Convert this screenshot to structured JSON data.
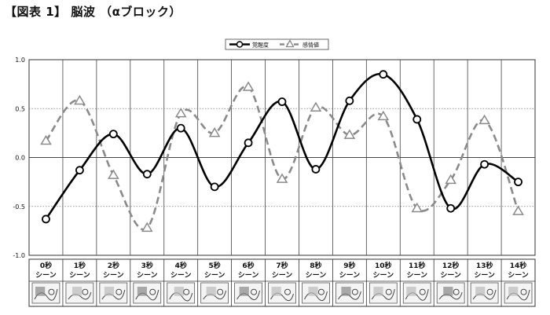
{
  "figure_title": "【図表 1】 脳波 （αブロック）",
  "chart_data": {
    "type": "line",
    "title": "",
    "xlabel": "",
    "ylabel": "",
    "ylim": [
      -1.0,
      1.0
    ],
    "yticks": [
      "1.0",
      "0.5",
      "0.0",
      "-0.5",
      "-1.0"
    ],
    "ytick_values": [
      1.0,
      0.5,
      0.0,
      -0.5,
      -1.0
    ],
    "categories": [
      "0秒",
      "1秒",
      "2秒",
      "3秒",
      "4秒",
      "5秒",
      "6秒",
      "7秒",
      "8秒",
      "9秒",
      "10秒",
      "11秒",
      "12秒",
      "13秒",
      "14秒"
    ],
    "category_sub": "シーン",
    "series": [
      {
        "name": "覚醒度",
        "color": "#000000",
        "line": "solid",
        "marker": "circle",
        "values": [
          -0.63,
          -0.13,
          0.24,
          -0.17,
          0.3,
          -0.3,
          0.15,
          0.57,
          -0.12,
          0.58,
          0.85,
          0.39,
          -0.52,
          -0.07,
          -0.25
        ]
      },
      {
        "name": "感情値",
        "color": "#8a8a8a",
        "line": "dashed",
        "marker": "triangle",
        "values": [
          0.17,
          0.58,
          -0.18,
          -0.72,
          0.45,
          0.25,
          0.72,
          -0.22,
          0.51,
          0.23,
          0.42,
          -0.52,
          -0.23,
          0.38,
          -0.55
        ]
      }
    ],
    "grid": true,
    "legend_position": "top-center",
    "scene_thumbnails": true
  }
}
